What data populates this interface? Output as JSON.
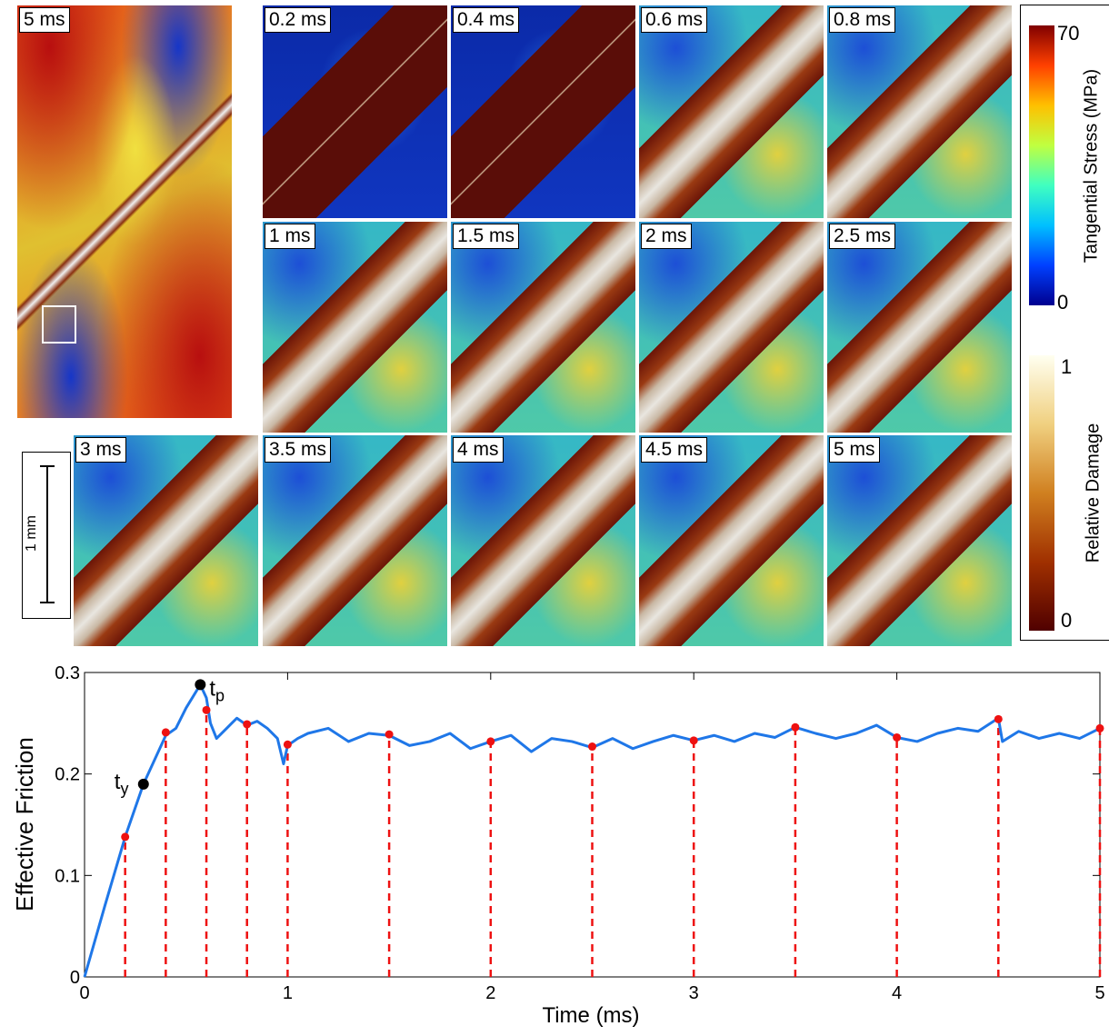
{
  "panels": [
    "5 ms",
    "0.2 ms",
    "0.4 ms",
    "0.6 ms",
    "0.8 ms",
    "1 ms",
    "1.5 ms",
    "2 ms",
    "2.5 ms",
    "3 ms",
    "3.5 ms",
    "4 ms",
    "4.5 ms",
    "5 ms"
  ],
  "scale_bar": "1 mm",
  "colorbars": {
    "stress": {
      "label": "Tangential Stress (MPa)",
      "max": "70",
      "min": "0"
    },
    "damage": {
      "label": "Relative Damage",
      "max": "1",
      "min": "0"
    }
  },
  "chart_data": {
    "type": "line",
    "xlabel": "Time (ms)",
    "ylabel": "Effective Friction",
    "xlim": [
      0,
      5
    ],
    "ylim": [
      0,
      0.3
    ],
    "xticks": [
      0,
      1,
      2,
      3,
      4,
      5
    ],
    "yticks": [
      0,
      0.1,
      0.2,
      0.3
    ],
    "series": [
      {
        "color": "#1f77e8",
        "x": [
          0,
          0.1,
          0.2,
          0.29,
          0.4,
          0.45,
          0.5,
          0.57,
          0.6,
          0.62,
          0.65,
          0.7,
          0.75,
          0.8,
          0.85,
          0.9,
          0.95,
          0.98,
          1.0,
          1.05,
          1.1,
          1.2,
          1.3,
          1.4,
          1.5,
          1.6,
          1.7,
          1.8,
          1.9,
          2.0,
          2.1,
          2.2,
          2.3,
          2.4,
          2.5,
          2.6,
          2.7,
          2.8,
          2.9,
          3.0,
          3.1,
          3.2,
          3.3,
          3.4,
          3.5,
          3.6,
          3.7,
          3.8,
          3.9,
          4.0,
          4.1,
          4.2,
          4.3,
          4.4,
          4.5,
          4.52,
          4.6,
          4.7,
          4.8,
          4.9,
          5.0
        ],
        "values": [
          0,
          0.07,
          0.138,
          0.19,
          0.238,
          0.245,
          0.265,
          0.288,
          0.275,
          0.25,
          0.235,
          0.245,
          0.255,
          0.248,
          0.252,
          0.245,
          0.235,
          0.21,
          0.228,
          0.235,
          0.24,
          0.245,
          0.232,
          0.24,
          0.238,
          0.228,
          0.232,
          0.24,
          0.225,
          0.232,
          0.238,
          0.222,
          0.235,
          0.232,
          0.226,
          0.235,
          0.225,
          0.232,
          0.238,
          0.233,
          0.238,
          0.232,
          0.24,
          0.236,
          0.246,
          0.24,
          0.235,
          0.24,
          0.248,
          0.236,
          0.232,
          0.24,
          0.245,
          0.242,
          0.255,
          0.232,
          0.242,
          0.235,
          0.24,
          0.235,
          0.245
        ]
      }
    ],
    "snapshots": {
      "color": "#ee1111",
      "x": [
        0.2,
        0.4,
        0.6,
        0.8,
        1,
        1.5,
        2,
        2.5,
        3,
        3.5,
        4,
        4.5,
        5
      ],
      "values": [
        0.138,
        0.241,
        0.263,
        0.249,
        0.229,
        0.239,
        0.232,
        0.227,
        0.233,
        0.246,
        0.236,
        0.254,
        0.245
      ]
    },
    "markers": [
      {
        "base": "t",
        "sub": "y",
        "x": 0.29,
        "value": 0.19
      },
      {
        "base": "t",
        "sub": "p",
        "x": 0.57,
        "value": 0.288
      }
    ]
  }
}
